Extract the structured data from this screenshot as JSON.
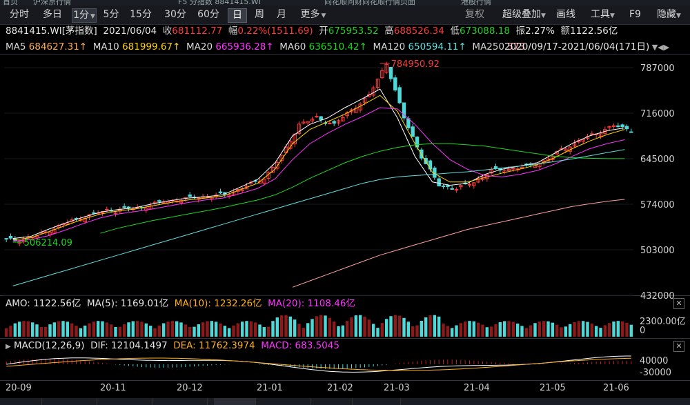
{
  "top_tabs": [
    "首页",
    "沪深京行情",
    "F5 分指数 8841415.WI",
    "同花顺问财同花顺行情页面",
    "港股行情"
  ],
  "toolbar": {
    "periods": [
      "分时",
      "多日",
      "1分",
      "5分",
      "15分",
      "30分",
      "60分",
      "日",
      "周",
      "月",
      "更多"
    ],
    "selected_minute": "1分",
    "selected_period": "日",
    "right_items": [
      "复权",
      "超级叠加",
      "画线",
      "工具",
      "F9",
      "隐藏"
    ]
  },
  "quote": {
    "code_name": "8841415.WI[茅指数]",
    "date": "2021/06/04",
    "close_label": "收",
    "close": "681112.77",
    "change_label": "幅",
    "change": "0.22%(1511.69)",
    "open_label": "开",
    "open": "675953.52",
    "high_label": "高",
    "high": "688526.34",
    "low_label": "低",
    "low": "673088.18",
    "amplitude_label": "振",
    "amplitude": "2.27%",
    "amount_label": "额",
    "amount": "1122.56亿"
  },
  "ma": {
    "ma5_label": "MA5",
    "ma5": "684627.31↑",
    "ma10_label": "MA10",
    "ma10": "681999.67↑",
    "ma20_label": "MA20",
    "ma20": "665936.28↑",
    "ma60_label": "MA60",
    "ma60": "636510.42↑",
    "ma120_label": "MA120",
    "ma120": "650594.11↑",
    "ma250_label": "MA250",
    "ma250": "573",
    "range": "2020/09/17-2021/06/04(171日)"
  },
  "amo": {
    "label": "AMO: 1122.56亿",
    "ma5": "MA(5): 1169.01亿",
    "ma10": "MA(10): 1232.26亿",
    "ma20": "MA(20): 1108.46亿",
    "ytop": "2300.00亿",
    "ybottom": "0"
  },
  "macd": {
    "label": "MACD(12,26,9)",
    "dif": "DIF: 12104.1497",
    "dea": "DEA: 11762.3974",
    "macd": "MACD: 683.5045",
    "ytop": "40000",
    "ybottom": "-30000"
  },
  "colors": {
    "up": "#ff3c3c",
    "down": "#4fd8d8",
    "ma5": "#ffffff",
    "ma10": "#ffd400",
    "ma20": "#ff33ff",
    "ma60": "#1ed81e",
    "ma120": "#5fe0e0",
    "ma250": "#ffa0a0"
  },
  "chart_data": {
    "type": "line",
    "title": "",
    "y_ticks": [
      787000,
      716000,
      645000,
      574000,
      503000,
      432000
    ],
    "ylim": [
      432000,
      787000
    ],
    "x_ticks": [
      "20-09",
      "20-11",
      "20-12",
      "21-01",
      "21-02",
      "21-03",
      "21-04",
      "21-05",
      "21-06"
    ],
    "annotations": [
      {
        "text": "784950.92",
        "value": 784950.92,
        "kind": "high"
      },
      {
        "text": "506214.09",
        "value": 506214.09,
        "kind": "low"
      }
    ],
    "series": [
      {
        "name": "MA5",
        "values": [
          512000,
          515000,
          526000,
          536000,
          545000,
          553000,
          557000,
          560000,
          566000,
          571000,
          575000,
          577000,
          580000,
          592000,
          604000,
          630000,
          672000,
          690000,
          700000,
          716000,
          730000,
          745000,
          700000,
          640000,
          600000,
          595000,
          598000,
          612000,
          620000,
          625000,
          630000,
          645000,
          660000,
          672000,
          680000,
          684627
        ]
      },
      {
        "name": "MA10",
        "values": [
          510000,
          513000,
          522000,
          532000,
          542000,
          550000,
          555000,
          558000,
          563000,
          568000,
          572000,
          575000,
          578000,
          588000,
          598000,
          620000,
          660000,
          682000,
          694000,
          706000,
          720000,
          735000,
          710000,
          660000,
          615000,
          600000,
          600000,
          607000,
          614000,
          620000,
          627000,
          638000,
          652000,
          664000,
          674000,
          681999
        ]
      },
      {
        "name": "MA20",
        "values": [
          508000,
          510000,
          516000,
          525000,
          535000,
          544000,
          550000,
          554000,
          558000,
          563000,
          568000,
          572000,
          575000,
          582000,
          590000,
          605000,
          635000,
          660000,
          676000,
          690000,
          702000,
          716000,
          714000,
          690000,
          660000,
          635000,
          620000,
          610000,
          608000,
          612000,
          618000,
          628000,
          640000,
          652000,
          660000,
          665936
        ]
      },
      {
        "name": "MA60",
        "values": [
          null,
          null,
          null,
          null,
          null,
          520000,
          528000,
          534000,
          540000,
          545000,
          550000,
          555000,
          560000,
          566000,
          572000,
          580000,
          592000,
          606000,
          618000,
          630000,
          640000,
          648000,
          654000,
          658000,
          660000,
          660000,
          658000,
          656000,
          652000,
          648000,
          644000,
          640000,
          638000,
          637000,
          636500,
          636510
        ]
      },
      {
        "name": "MA120",
        "values": [
          438000,
          446000,
          454000,
          462000,
          470000,
          478000,
          486000,
          494000,
          502000,
          510000,
          518000,
          526000,
          534000,
          542000,
          550000,
          558000,
          566000,
          574000,
          582000,
          590000,
          598000,
          604000,
          608000,
          610000,
          612000,
          614000,
          616000,
          619000,
          622000,
          625000,
          628000,
          632000,
          636000,
          641000,
          646000,
          650594
        ]
      },
      {
        "name": "MA250",
        "values": [
          null,
          null,
          null,
          null,
          null,
          null,
          null,
          null,
          null,
          null,
          null,
          null,
          null,
          null,
          null,
          null,
          436000,
          446000,
          456000,
          466000,
          476000,
          486000,
          494000,
          502000,
          510000,
          518000,
          526000,
          532000,
          538000,
          544000,
          550000,
          556000,
          562000,
          566000,
          570000,
          573000
        ]
      }
    ],
    "close": [
      510000,
      516000,
      528000,
      540000,
      548000,
      556000,
      558000,
      560000,
      568000,
      572000,
      576000,
      578000,
      582000,
      594000,
      606000,
      640000,
      690000,
      700000,
      690000,
      712000,
      735000,
      784950,
      700000,
      640000,
      595000,
      590000,
      600000,
      618000,
      620000,
      624000,
      632000,
      650000,
      664000,
      676000,
      688000,
      681112
    ]
  }
}
